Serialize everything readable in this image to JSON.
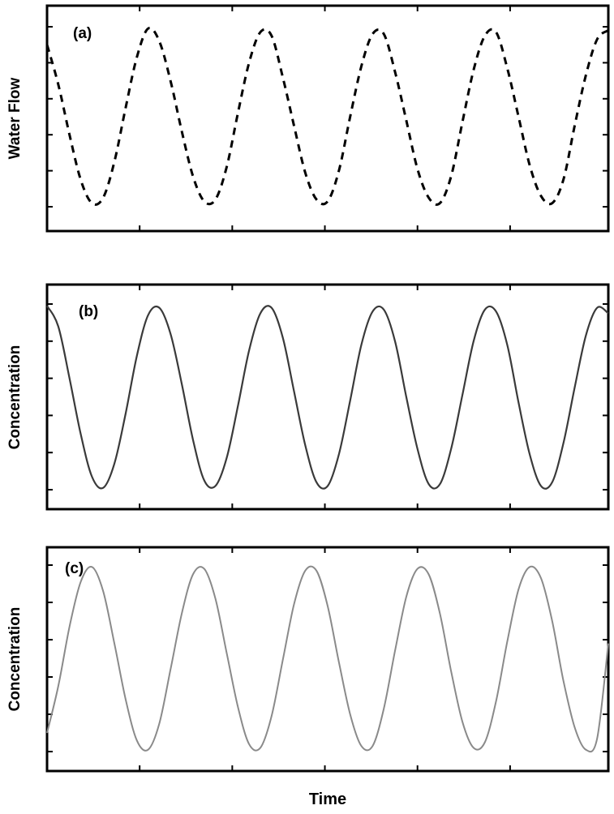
{
  "chart_data": [
    {
      "type": "line",
      "panel_label": "(a)",
      "ylabel": "Water Flow",
      "xlabel": "",
      "x_range": [
        0,
        100
      ],
      "y_range": [
        0,
        1
      ],
      "series": [
        {
          "color": "#000000",
          "line_style": "dashed",
          "x": [
            0,
            2,
            4,
            6,
            8,
            10,
            12,
            14,
            16,
            18,
            20,
            22,
            24,
            26,
            28,
            30,
            32,
            34,
            36,
            38,
            40,
            42,
            44,
            46,
            48,
            50,
            52,
            54,
            56,
            58,
            60,
            62,
            64,
            66,
            68,
            70,
            72,
            74,
            76,
            78,
            80,
            82,
            84,
            86,
            88,
            90,
            92,
            94,
            96,
            98,
            100
          ],
          "y": [
            0.9,
            0.68,
            0.4,
            0.15,
            0.02,
            0.05,
            0.25,
            0.55,
            0.83,
            0.99,
            0.92,
            0.7,
            0.42,
            0.17,
            0.03,
            0.04,
            0.22,
            0.52,
            0.8,
            0.97,
            0.95,
            0.72,
            0.45,
            0.19,
            0.04,
            0.03,
            0.2,
            0.5,
            0.78,
            0.96,
            0.96,
            0.75,
            0.48,
            0.21,
            0.05,
            0.02,
            0.17,
            0.47,
            0.76,
            0.95,
            0.97,
            0.77,
            0.5,
            0.23,
            0.06,
            0.02,
            0.15,
            0.45,
            0.73,
            0.93,
            0.98
          ]
        }
      ],
      "grid": false,
      "legend": "none"
    },
    {
      "type": "line",
      "panel_label": "(b)",
      "ylabel": "Concentration",
      "xlabel": "",
      "x_range": [
        0,
        100
      ],
      "y_range": [
        0,
        1
      ],
      "series": [
        {
          "color": "#3a3a3a",
          "line_style": "solid",
          "x": [
            0,
            2,
            4,
            6,
            8,
            10,
            12,
            14,
            16,
            18,
            20,
            22,
            24,
            26,
            28,
            30,
            32,
            34,
            36,
            38,
            40,
            42,
            44,
            46,
            48,
            50,
            52,
            54,
            56,
            58,
            60,
            62,
            64,
            66,
            68,
            70,
            72,
            74,
            76,
            78,
            80,
            82,
            84,
            86,
            88,
            90,
            92,
            94,
            96,
            98,
            100
          ],
          "y": [
            0.99,
            0.88,
            0.6,
            0.3,
            0.07,
            0.01,
            0.14,
            0.41,
            0.72,
            0.94,
            0.98,
            0.84,
            0.57,
            0.27,
            0.05,
            0.02,
            0.17,
            0.45,
            0.75,
            0.95,
            0.98,
            0.82,
            0.53,
            0.24,
            0.04,
            0.02,
            0.19,
            0.48,
            0.78,
            0.96,
            0.97,
            0.8,
            0.5,
            0.22,
            0.03,
            0.03,
            0.22,
            0.51,
            0.8,
            0.97,
            0.96,
            0.78,
            0.47,
            0.19,
            0.02,
            0.04,
            0.25,
            0.55,
            0.83,
            0.98,
            0.95
          ]
        }
      ],
      "grid": false,
      "legend": "none"
    },
    {
      "type": "line",
      "panel_label": "(c)",
      "ylabel": "Concentration",
      "xlabel": "Time",
      "x_range": [
        0,
        100
      ],
      "y_range": [
        0,
        1
      ],
      "series": [
        {
          "color": "#8a8a8a",
          "line_style": "solid",
          "x": [
            0,
            2,
            4,
            6,
            8,
            10,
            12,
            14,
            16,
            18,
            20,
            22,
            24,
            26,
            28,
            30,
            32,
            34,
            36,
            38,
            40,
            42,
            44,
            46,
            48,
            50,
            52,
            54,
            56,
            58,
            60,
            62,
            64,
            66,
            68,
            70,
            72,
            74,
            76,
            78,
            80,
            82,
            84,
            86,
            88,
            90,
            92,
            94,
            96,
            98,
            100
          ],
          "y": [
            0.1,
            0.35,
            0.67,
            0.91,
            0.99,
            0.86,
            0.58,
            0.28,
            0.06,
            0.01,
            0.15,
            0.44,
            0.74,
            0.95,
            0.98,
            0.82,
            0.53,
            0.24,
            0.04,
            0.02,
            0.19,
            0.49,
            0.79,
            0.97,
            0.97,
            0.78,
            0.48,
            0.2,
            0.03,
            0.03,
            0.23,
            0.54,
            0.83,
            0.98,
            0.95,
            0.74,
            0.43,
            0.16,
            0.02,
            0.05,
            0.27,
            0.59,
            0.87,
            0.99,
            0.93,
            0.7,
            0.38,
            0.13,
            0.01,
            0.07,
            0.58
          ]
        }
      ],
      "grid": false,
      "legend": "none"
    }
  ]
}
